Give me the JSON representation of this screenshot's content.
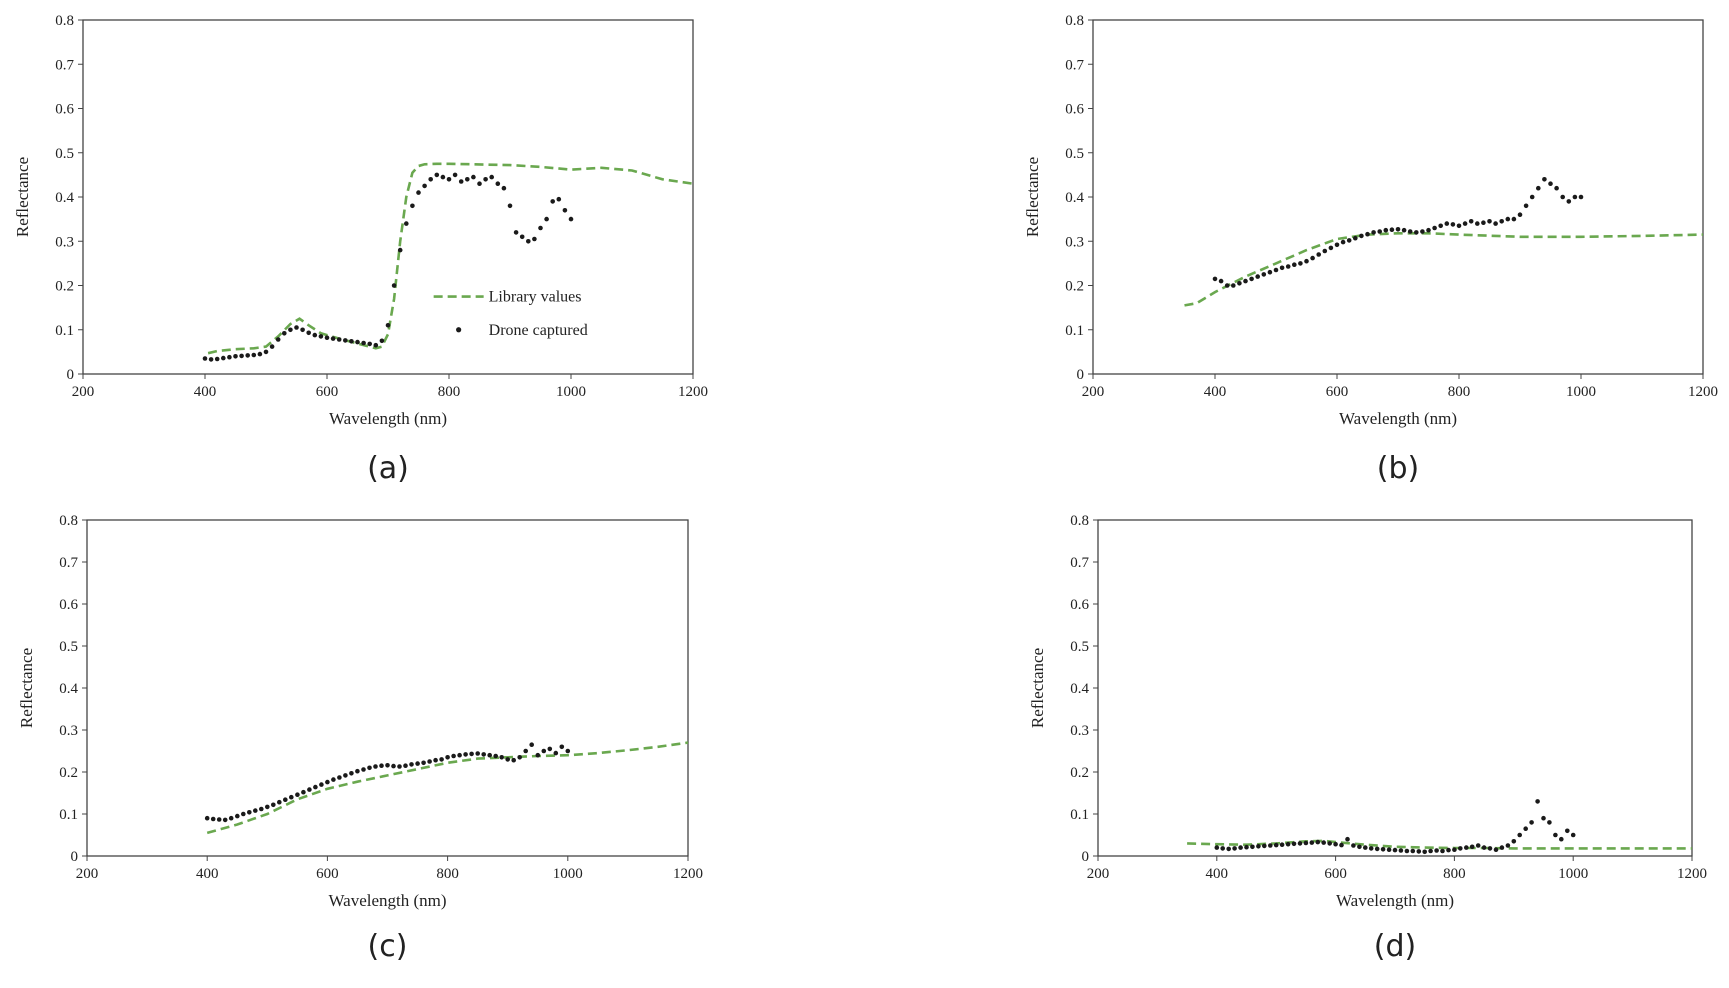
{
  "colors": {
    "library": "#6aa84f",
    "drone": "#1a1a1a",
    "axis": "#444444"
  },
  "chart_data": [
    {
      "type": "scatter",
      "panel_label": "(a)",
      "xlabel": "Wavelength (nm)",
      "ylabel": "Reflectance",
      "xlim": [
        200,
        1200
      ],
      "ylim": [
        0,
        0.8
      ],
      "xticks": [
        200,
        400,
        600,
        800,
        1000,
        1200
      ],
      "yticks": [
        0,
        0.1,
        0.2,
        0.3,
        0.4,
        0.5,
        0.6,
        0.7,
        0.8
      ],
      "legend": {
        "position": "bottom-right",
        "entries": [
          "Library values",
          "Drone captured"
        ]
      },
      "series": [
        {
          "name": "Library values",
          "style": "dashed-line",
          "x": [
            405,
            420,
            450,
            480,
            500,
            520,
            540,
            555,
            570,
            590,
            620,
            650,
            680,
            690,
            700,
            710,
            720,
            730,
            740,
            750,
            760,
            780,
            800,
            900,
            950,
            1000,
            1050,
            1100,
            1150,
            1200
          ],
          "y": [
            0.047,
            0.052,
            0.056,
            0.058,
            0.062,
            0.085,
            0.113,
            0.125,
            0.11,
            0.092,
            0.08,
            0.069,
            0.058,
            0.062,
            0.09,
            0.17,
            0.3,
            0.4,
            0.455,
            0.47,
            0.474,
            0.475,
            0.475,
            0.472,
            0.468,
            0.462,
            0.466,
            0.46,
            0.44,
            0.43
          ]
        },
        {
          "name": "Drone captured",
          "style": "points",
          "x": [
            400,
            410,
            420,
            430,
            440,
            450,
            460,
            470,
            480,
            490,
            500,
            510,
            520,
            530,
            540,
            550,
            560,
            570,
            580,
            590,
            600,
            610,
            620,
            630,
            640,
            650,
            660,
            670,
            680,
            690,
            700,
            710,
            720,
            730,
            740,
            750,
            760,
            770,
            780,
            790,
            800,
            810,
            820,
            830,
            840,
            850,
            860,
            870,
            880,
            890,
            900,
            910,
            920,
            930,
            940,
            950,
            960,
            970,
            980,
            990,
            1000
          ],
          "y": [
            0.035,
            0.033,
            0.034,
            0.036,
            0.038,
            0.04,
            0.041,
            0.042,
            0.043,
            0.045,
            0.05,
            0.062,
            0.078,
            0.092,
            0.1,
            0.105,
            0.1,
            0.093,
            0.088,
            0.085,
            0.082,
            0.08,
            0.078,
            0.076,
            0.074,
            0.072,
            0.07,
            0.068,
            0.065,
            0.075,
            0.11,
            0.2,
            0.28,
            0.34,
            0.38,
            0.41,
            0.425,
            0.44,
            0.45,
            0.445,
            0.44,
            0.45,
            0.435,
            0.44,
            0.445,
            0.43,
            0.44,
            0.445,
            0.43,
            0.42,
            0.38,
            0.32,
            0.31,
            0.3,
            0.305,
            0.33,
            0.35,
            0.39,
            0.395,
            0.37,
            0.35
          ]
        }
      ]
    },
    {
      "type": "scatter",
      "panel_label": "(b)",
      "xlabel": "Wavelength (nm)",
      "ylabel": "Reflectance",
      "xlim": [
        200,
        1200
      ],
      "ylim": [
        0,
        0.8
      ],
      "xticks": [
        200,
        400,
        600,
        800,
        1000,
        1200
      ],
      "yticks": [
        0,
        0.1,
        0.2,
        0.3,
        0.4,
        0.5,
        0.6,
        0.7,
        0.8
      ],
      "series": [
        {
          "name": "Library values",
          "style": "dashed-line",
          "x": [
            350,
            370,
            400,
            450,
            500,
            550,
            600,
            650,
            700,
            750,
            800,
            900,
            1000,
            1100,
            1200
          ],
          "y": [
            0.155,
            0.16,
            0.185,
            0.22,
            0.25,
            0.28,
            0.305,
            0.315,
            0.318,
            0.318,
            0.315,
            0.31,
            0.31,
            0.312,
            0.315
          ]
        },
        {
          "name": "Drone captured",
          "style": "points",
          "x": [
            400,
            410,
            420,
            430,
            440,
            450,
            460,
            470,
            480,
            490,
            500,
            510,
            520,
            530,
            540,
            550,
            560,
            570,
            580,
            590,
            600,
            610,
            620,
            630,
            640,
            650,
            660,
            670,
            680,
            690,
            700,
            710,
            720,
            730,
            740,
            750,
            760,
            770,
            780,
            790,
            800,
            810,
            820,
            830,
            840,
            850,
            860,
            870,
            880,
            890,
            900,
            910,
            920,
            930,
            940,
            950,
            960,
            970,
            980,
            990,
            1000
          ],
          "y": [
            0.215,
            0.21,
            0.2,
            0.2,
            0.205,
            0.21,
            0.215,
            0.22,
            0.225,
            0.23,
            0.235,
            0.24,
            0.243,
            0.247,
            0.25,
            0.255,
            0.262,
            0.27,
            0.278,
            0.285,
            0.292,
            0.298,
            0.302,
            0.307,
            0.312,
            0.316,
            0.32,
            0.322,
            0.325,
            0.326,
            0.327,
            0.325,
            0.322,
            0.32,
            0.322,
            0.325,
            0.33,
            0.335,
            0.34,
            0.338,
            0.335,
            0.34,
            0.345,
            0.34,
            0.342,
            0.345,
            0.34,
            0.345,
            0.35,
            0.35,
            0.36,
            0.38,
            0.4,
            0.42,
            0.44,
            0.43,
            0.42,
            0.4,
            0.39,
            0.4,
            0.4
          ]
        }
      ]
    },
    {
      "type": "scatter",
      "panel_label": "(c)",
      "xlabel": "Wavelength (nm)",
      "ylabel": "Reflectance",
      "xlim": [
        200,
        1200
      ],
      "ylim": [
        0,
        0.8
      ],
      "xticks": [
        200,
        400,
        600,
        800,
        1000,
        1200
      ],
      "yticks": [
        0,
        0.1,
        0.2,
        0.3,
        0.4,
        0.5,
        0.6,
        0.7,
        0.8
      ],
      "series": [
        {
          "name": "Library values",
          "style": "dashed-line",
          "x": [
            400,
            450,
            500,
            550,
            600,
            650,
            700,
            750,
            800,
            850,
            900,
            950,
            1000,
            1050,
            1100,
            1150,
            1200
          ],
          "y": [
            0.055,
            0.075,
            0.1,
            0.135,
            0.16,
            0.177,
            0.192,
            0.207,
            0.222,
            0.232,
            0.235,
            0.238,
            0.24,
            0.245,
            0.252,
            0.26,
            0.27
          ]
        },
        {
          "name": "Drone captured",
          "style": "points",
          "x": [
            400,
            410,
            420,
            430,
            440,
            450,
            460,
            470,
            480,
            490,
            500,
            510,
            520,
            530,
            540,
            550,
            560,
            570,
            580,
            590,
            600,
            610,
            620,
            630,
            640,
            650,
            660,
            670,
            680,
            690,
            700,
            710,
            720,
            730,
            740,
            750,
            760,
            770,
            780,
            790,
            800,
            810,
            820,
            830,
            840,
            850,
            860,
            870,
            880,
            890,
            900,
            910,
            920,
            930,
            940,
            950,
            960,
            970,
            980,
            990,
            1000
          ],
          "y": [
            0.09,
            0.088,
            0.087,
            0.086,
            0.09,
            0.095,
            0.1,
            0.104,
            0.108,
            0.112,
            0.117,
            0.122,
            0.128,
            0.134,
            0.14,
            0.146,
            0.152,
            0.158,
            0.164,
            0.17,
            0.176,
            0.182,
            0.187,
            0.192,
            0.197,
            0.202,
            0.206,
            0.21,
            0.213,
            0.215,
            0.216,
            0.214,
            0.213,
            0.215,
            0.218,
            0.22,
            0.222,
            0.225,
            0.228,
            0.23,
            0.235,
            0.238,
            0.24,
            0.242,
            0.243,
            0.244,
            0.242,
            0.24,
            0.238,
            0.235,
            0.23,
            0.228,
            0.235,
            0.25,
            0.265,
            0.24,
            0.25,
            0.255,
            0.245,
            0.26,
            0.25
          ]
        }
      ]
    },
    {
      "type": "scatter",
      "panel_label": "(d)",
      "xlabel": "Wavelength (nm)",
      "ylabel": "Reflectance",
      "xlim": [
        200,
        1200
      ],
      "ylim": [
        0,
        0.8
      ],
      "xticks": [
        200,
        400,
        600,
        800,
        1000,
        1200
      ],
      "yticks": [
        0,
        0.1,
        0.2,
        0.3,
        0.4,
        0.5,
        0.6,
        0.7,
        0.8
      ],
      "series": [
        {
          "name": "Library values",
          "style": "dashed-line",
          "x": [
            350,
            400,
            450,
            500,
            550,
            580,
            600,
            650,
            700,
            750,
            800,
            850,
            900,
            950,
            1000,
            1100,
            1200
          ],
          "y": [
            0.03,
            0.028,
            0.027,
            0.03,
            0.035,
            0.036,
            0.033,
            0.027,
            0.022,
            0.02,
            0.019,
            0.019,
            0.018,
            0.018,
            0.018,
            0.018,
            0.018
          ]
        },
        {
          "name": "Drone captured",
          "style": "points",
          "x": [
            400,
            410,
            420,
            430,
            440,
            450,
            460,
            470,
            480,
            490,
            500,
            510,
            520,
            530,
            540,
            550,
            560,
            570,
            580,
            590,
            600,
            610,
            620,
            630,
            640,
            650,
            660,
            670,
            680,
            690,
            700,
            710,
            720,
            730,
            740,
            750,
            760,
            770,
            780,
            790,
            800,
            810,
            820,
            830,
            840,
            850,
            860,
            870,
            880,
            890,
            900,
            910,
            920,
            930,
            940,
            950,
            960,
            970,
            980,
            990,
            1000
          ],
          "y": [
            0.02,
            0.018,
            0.017,
            0.018,
            0.02,
            0.021,
            0.022,
            0.023,
            0.024,
            0.025,
            0.026,
            0.027,
            0.028,
            0.029,
            0.03,
            0.031,
            0.032,
            0.033,
            0.032,
            0.03,
            0.028,
            0.026,
            0.04,
            0.025,
            0.022,
            0.02,
            0.018,
            0.017,
            0.016,
            0.015,
            0.014,
            0.013,
            0.012,
            0.012,
            0.011,
            0.01,
            0.012,
            0.013,
            0.012,
            0.014,
            0.015,
            0.018,
            0.02,
            0.022,
            0.025,
            0.02,
            0.018,
            0.015,
            0.02,
            0.025,
            0.035,
            0.05,
            0.065,
            0.08,
            0.13,
            0.09,
            0.08,
            0.05,
            0.04,
            0.06,
            0.05
          ]
        }
      ]
    }
  ]
}
